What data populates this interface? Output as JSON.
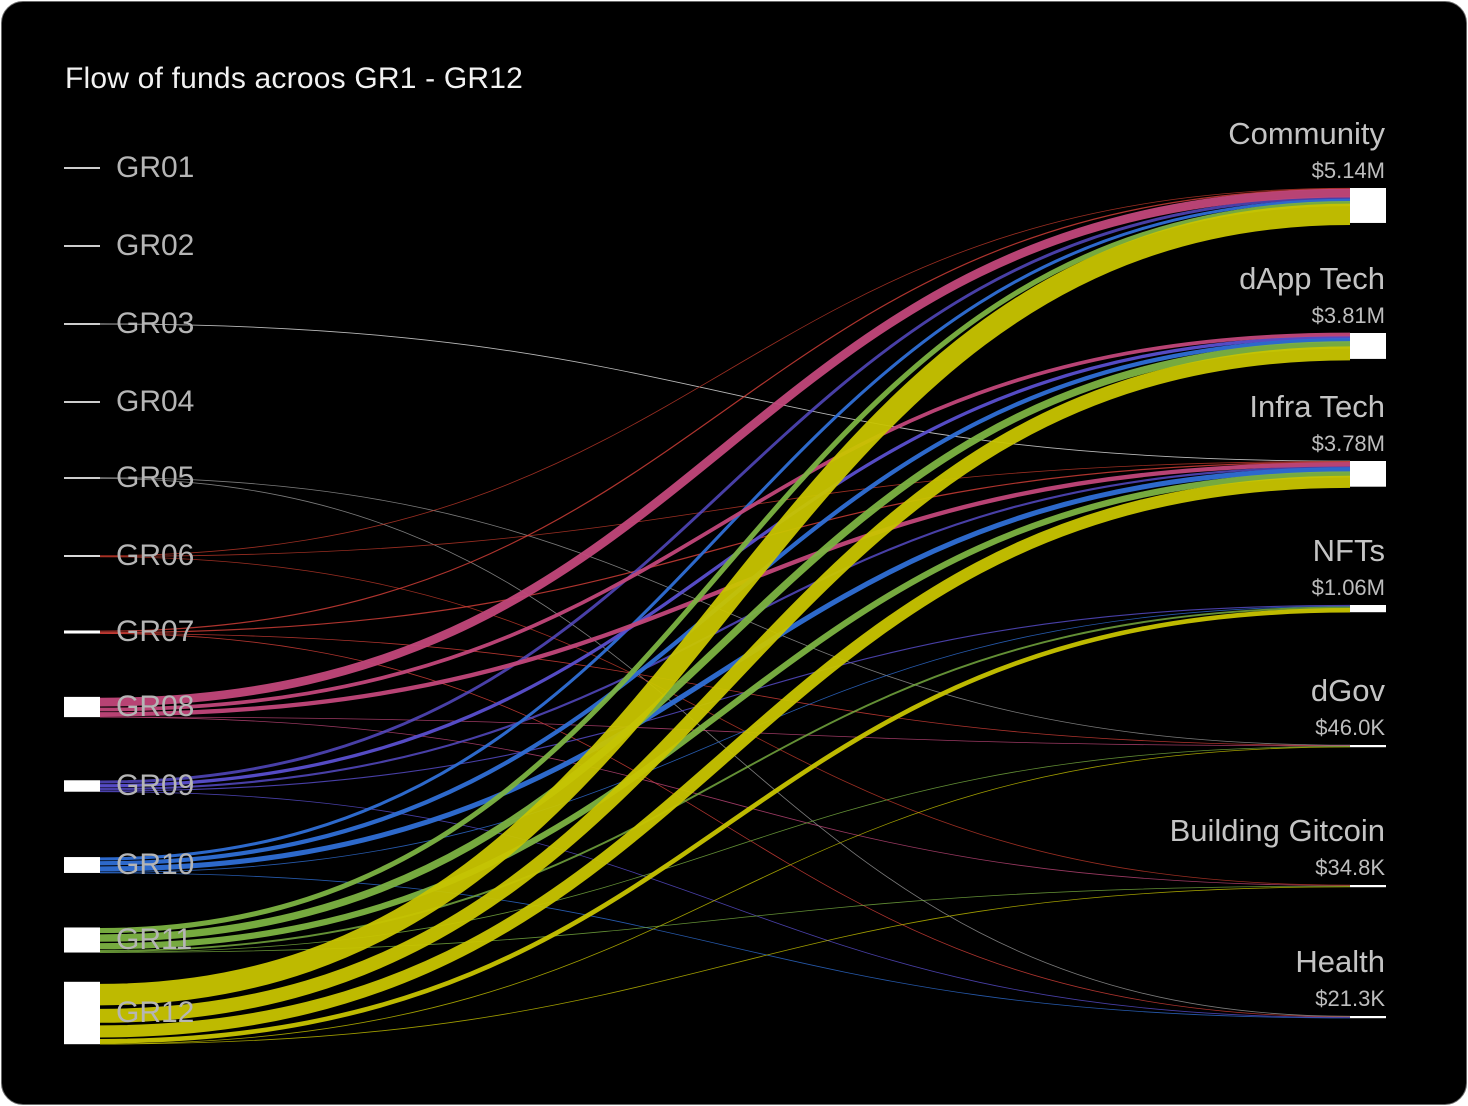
{
  "chart_data": {
    "type": "sankey",
    "title": "Flow of funds acroos GR1 - GR12",
    "sources": [
      {
        "name": "GR01",
        "color": "#ffffff"
      },
      {
        "name": "GR02",
        "color": "#ffffff"
      },
      {
        "name": "GR03",
        "color": "#e6e6e6"
      },
      {
        "name": "GR04",
        "color": "#d9d9d9"
      },
      {
        "name": "GR05",
        "color": "#9a9a9a"
      },
      {
        "name": "GR06",
        "color": "#c0392b"
      },
      {
        "name": "GR07",
        "color": "#d9413a"
      },
      {
        "name": "GR08",
        "color": "#c2477a"
      },
      {
        "name": "GR09",
        "color": "#5a4fcf"
      },
      {
        "name": "GR10",
        "color": "#2f6fd6"
      },
      {
        "name": "GR11",
        "color": "#7cb342"
      },
      {
        "name": "GR12",
        "color": "#c8c400"
      }
    ],
    "targets": [
      {
        "name": "Community",
        "value_label": "$5.14M",
        "value": 5140000
      },
      {
        "name": "dApp Tech",
        "value_label": "$3.81M",
        "value": 3810000
      },
      {
        "name": "Infra Tech",
        "value_label": "$3.78M",
        "value": 3780000
      },
      {
        "name": "NFTs",
        "value_label": "$1.06M",
        "value": 1060000
      },
      {
        "name": "dGov",
        "value_label": "$46.0K",
        "value": 46000
      },
      {
        "name": "Building Gitcoin",
        "value_label": "$34.8K",
        "value": 34800
      },
      {
        "name": "Health",
        "value_label": "$21.3K",
        "value": 21300
      }
    ],
    "links": [
      {
        "source": "GR03",
        "target": "Infra Tech",
        "value": 15000
      },
      {
        "source": "GR05",
        "target": "dGov",
        "value": 8000
      },
      {
        "source": "GR05",
        "target": "Health",
        "value": 6000
      },
      {
        "source": "GR06",
        "target": "Community",
        "value": 60000
      },
      {
        "source": "GR06",
        "target": "Infra Tech",
        "value": 40000
      },
      {
        "source": "GR06",
        "target": "Building Gitcoin",
        "value": 6000
      },
      {
        "source": "GR07",
        "target": "Community",
        "value": 90000
      },
      {
        "source": "GR07",
        "target": "Infra Tech",
        "value": 90000
      },
      {
        "source": "GR07",
        "target": "dGov",
        "value": 6000
      },
      {
        "source": "GR07",
        "target": "Health",
        "value": 5000
      },
      {
        "source": "GR08",
        "target": "Community",
        "value": 650000
      },
      {
        "source": "GR08",
        "target": "dApp Tech",
        "value": 280000
      },
      {
        "source": "GR08",
        "target": "Infra Tech",
        "value": 320000
      },
      {
        "source": "GR08",
        "target": "dGov",
        "value": 10000
      },
      {
        "source": "GR08",
        "target": "Building Gitcoin",
        "value": 5000
      },
      {
        "source": "GR09",
        "target": "Community",
        "value": 220000
      },
      {
        "source": "GR09",
        "target": "dApp Tech",
        "value": 250000
      },
      {
        "source": "GR09",
        "target": "Infra Tech",
        "value": 160000
      },
      {
        "source": "GR09",
        "target": "NFTs",
        "value": 80000
      },
      {
        "source": "GR09",
        "target": "Health",
        "value": 6000
      },
      {
        "source": "GR10",
        "target": "Community",
        "value": 230000
      },
      {
        "source": "GR10",
        "target": "dApp Tech",
        "value": 320000
      },
      {
        "source": "GR10",
        "target": "Infra Tech",
        "value": 380000
      },
      {
        "source": "GR10",
        "target": "NFTs",
        "value": 60000
      },
      {
        "source": "GR10",
        "target": "Health",
        "value": 4000
      },
      {
        "source": "GR11",
        "target": "Community",
        "value": 380000
      },
      {
        "source": "GR11",
        "target": "dApp Tech",
        "value": 560000
      },
      {
        "source": "GR11",
        "target": "Infra Tech",
        "value": 460000
      },
      {
        "source": "GR11",
        "target": "NFTs",
        "value": 140000
      },
      {
        "source": "GR11",
        "target": "dGov",
        "value": 12000
      },
      {
        "source": "GR11",
        "target": "Building Gitcoin",
        "value": 14000
      },
      {
        "source": "GR12",
        "target": "Community",
        "value": 1600000
      },
      {
        "source": "GR12",
        "target": "dApp Tech",
        "value": 1050000
      },
      {
        "source": "GR12",
        "target": "Infra Tech",
        "value": 900000
      },
      {
        "source": "GR12",
        "target": "NFTs",
        "value": 330000
      },
      {
        "source": "GR12",
        "target": "dGov",
        "value": 10000
      },
      {
        "source": "GR12",
        "target": "Building Gitcoin",
        "value": 9800
      }
    ]
  }
}
